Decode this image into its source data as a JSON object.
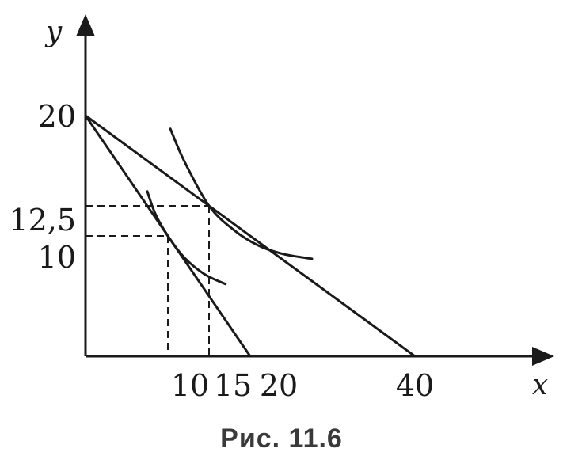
{
  "caption": "Рис. 11.6",
  "chart_data": {
    "type": "line",
    "xlabel": "x",
    "ylabel": "y",
    "xlim": [
      0,
      46
    ],
    "ylim": [
      0,
      26
    ],
    "x_ticks": [
      "10",
      "15",
      "20",
      "40"
    ],
    "y_ticks": [
      "20",
      "12,5",
      "10"
    ],
    "budget_lines": [
      {
        "points": [
          [
            0,
            20
          ],
          [
            20,
            0
          ]
        ]
      },
      {
        "points": [
          [
            0,
            20
          ],
          [
            40,
            0
          ]
        ]
      }
    ],
    "indifference_curves": [
      {
        "tangent_point": [
          10,
          10
        ],
        "points": [
          [
            7.5,
            13.7
          ],
          [
            8.5,
            11.8
          ],
          [
            10,
            10
          ],
          [
            12,
            8.2
          ],
          [
            14.5,
            6.8
          ],
          [
            17,
            6
          ]
        ]
      },
      {
        "tangent_point": [
          15,
          12.5
        ],
        "points": [
          [
            10.3,
            18.9
          ],
          [
            12,
            16.2
          ],
          [
            15,
            12.5
          ],
          [
            18,
            10.5
          ],
          [
            21,
            9.2
          ],
          [
            24,
            8.5
          ],
          [
            27.5,
            8.1
          ]
        ]
      }
    ],
    "guides": [
      {
        "from": [
          0,
          12.5
        ],
        "to": [
          15,
          12.5
        ]
      },
      {
        "from": [
          15,
          12.5
        ],
        "to": [
          15,
          0
        ]
      },
      {
        "from": [
          0,
          10
        ],
        "to": [
          10,
          10
        ]
      },
      {
        "from": [
          10,
          10
        ],
        "to": [
          10,
          0
        ]
      }
    ]
  }
}
